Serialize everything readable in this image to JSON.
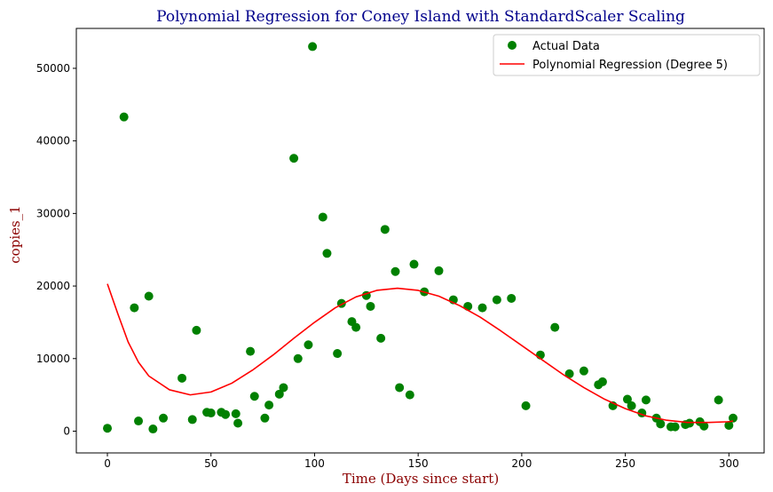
{
  "chart_data": {
    "type": "scatter",
    "title": "Polynomial Regression for Coney Island with StandardScaler Scaling",
    "xlabel": "Time (Days since start)",
    "ylabel": "copies_1",
    "xlim": [
      -15,
      317
    ],
    "ylim": [
      -3000,
      55500
    ],
    "xticks": [
      0,
      50,
      100,
      150,
      200,
      250,
      300
    ],
    "yticks": [
      0,
      10000,
      20000,
      30000,
      40000,
      50000
    ],
    "grid": false,
    "legend_position": "top-right",
    "colors": {
      "title": "#00008b",
      "axis_label": "#8b0000",
      "points": "#008000",
      "line": "#ff0000"
    },
    "series": [
      {
        "name": "Actual Data",
        "kind": "scatter",
        "x": [
          0,
          8,
          13,
          15,
          20,
          22,
          27,
          36,
          41,
          43,
          48,
          50,
          55,
          57,
          62,
          63,
          69,
          71,
          76,
          78,
          83,
          85,
          90,
          92,
          97,
          99,
          104,
          106,
          111,
          113,
          118,
          120,
          125,
          127,
          132,
          134,
          139,
          141,
          146,
          148,
          153,
          160,
          167,
          174,
          181,
          188,
          195,
          202,
          209,
          216,
          223,
          230,
          237,
          239,
          244,
          251,
          253,
          258,
          260,
          265,
          267,
          272,
          274,
          279,
          281,
          286,
          288,
          295,
          300,
          302
        ],
        "y": [
          400,
          43300,
          17000,
          1400,
          18600,
          300,
          1800,
          7300,
          1600,
          13900,
          2600,
          2500,
          2600,
          2300,
          2400,
          1100,
          11000,
          4800,
          1800,
          3600,
          5100,
          6000,
          37600,
          10000,
          11900,
          53000,
          29500,
          24500,
          10700,
          17600,
          15100,
          14300,
          18700,
          17200,
          12800,
          27800,
          22000,
          6000,
          5000,
          23000,
          19200,
          22100,
          18100,
          17200,
          17000,
          18100,
          18300,
          3500,
          10500,
          14300,
          7900,
          8300,
          6400,
          6800,
          3500,
          4400,
          3500,
          2500,
          4300,
          1800,
          1000,
          600,
          600,
          900,
          1100,
          1300,
          700,
          4300,
          800,
          1800
        ]
      },
      {
        "name": "Polynomial Regression (Degree 5)",
        "kind": "line",
        "x": [
          0,
          5,
          10,
          15,
          20,
          30,
          40,
          50,
          60,
          70,
          80,
          90,
          100,
          110,
          120,
          130,
          140,
          150,
          160,
          170,
          180,
          190,
          200,
          210,
          220,
          230,
          240,
          250,
          260,
          270,
          280,
          290,
          300,
          302
        ],
        "y": [
          20300,
          16200,
          12300,
          9500,
          7600,
          5700,
          5000,
          5400,
          6600,
          8400,
          10500,
          12800,
          15000,
          17000,
          18500,
          19400,
          19700,
          19400,
          18600,
          17300,
          15700,
          13800,
          11800,
          9800,
          7800,
          6000,
          4400,
          3100,
          2100,
          1500,
          1200,
          1200,
          1300,
          1400
        ]
      }
    ]
  }
}
